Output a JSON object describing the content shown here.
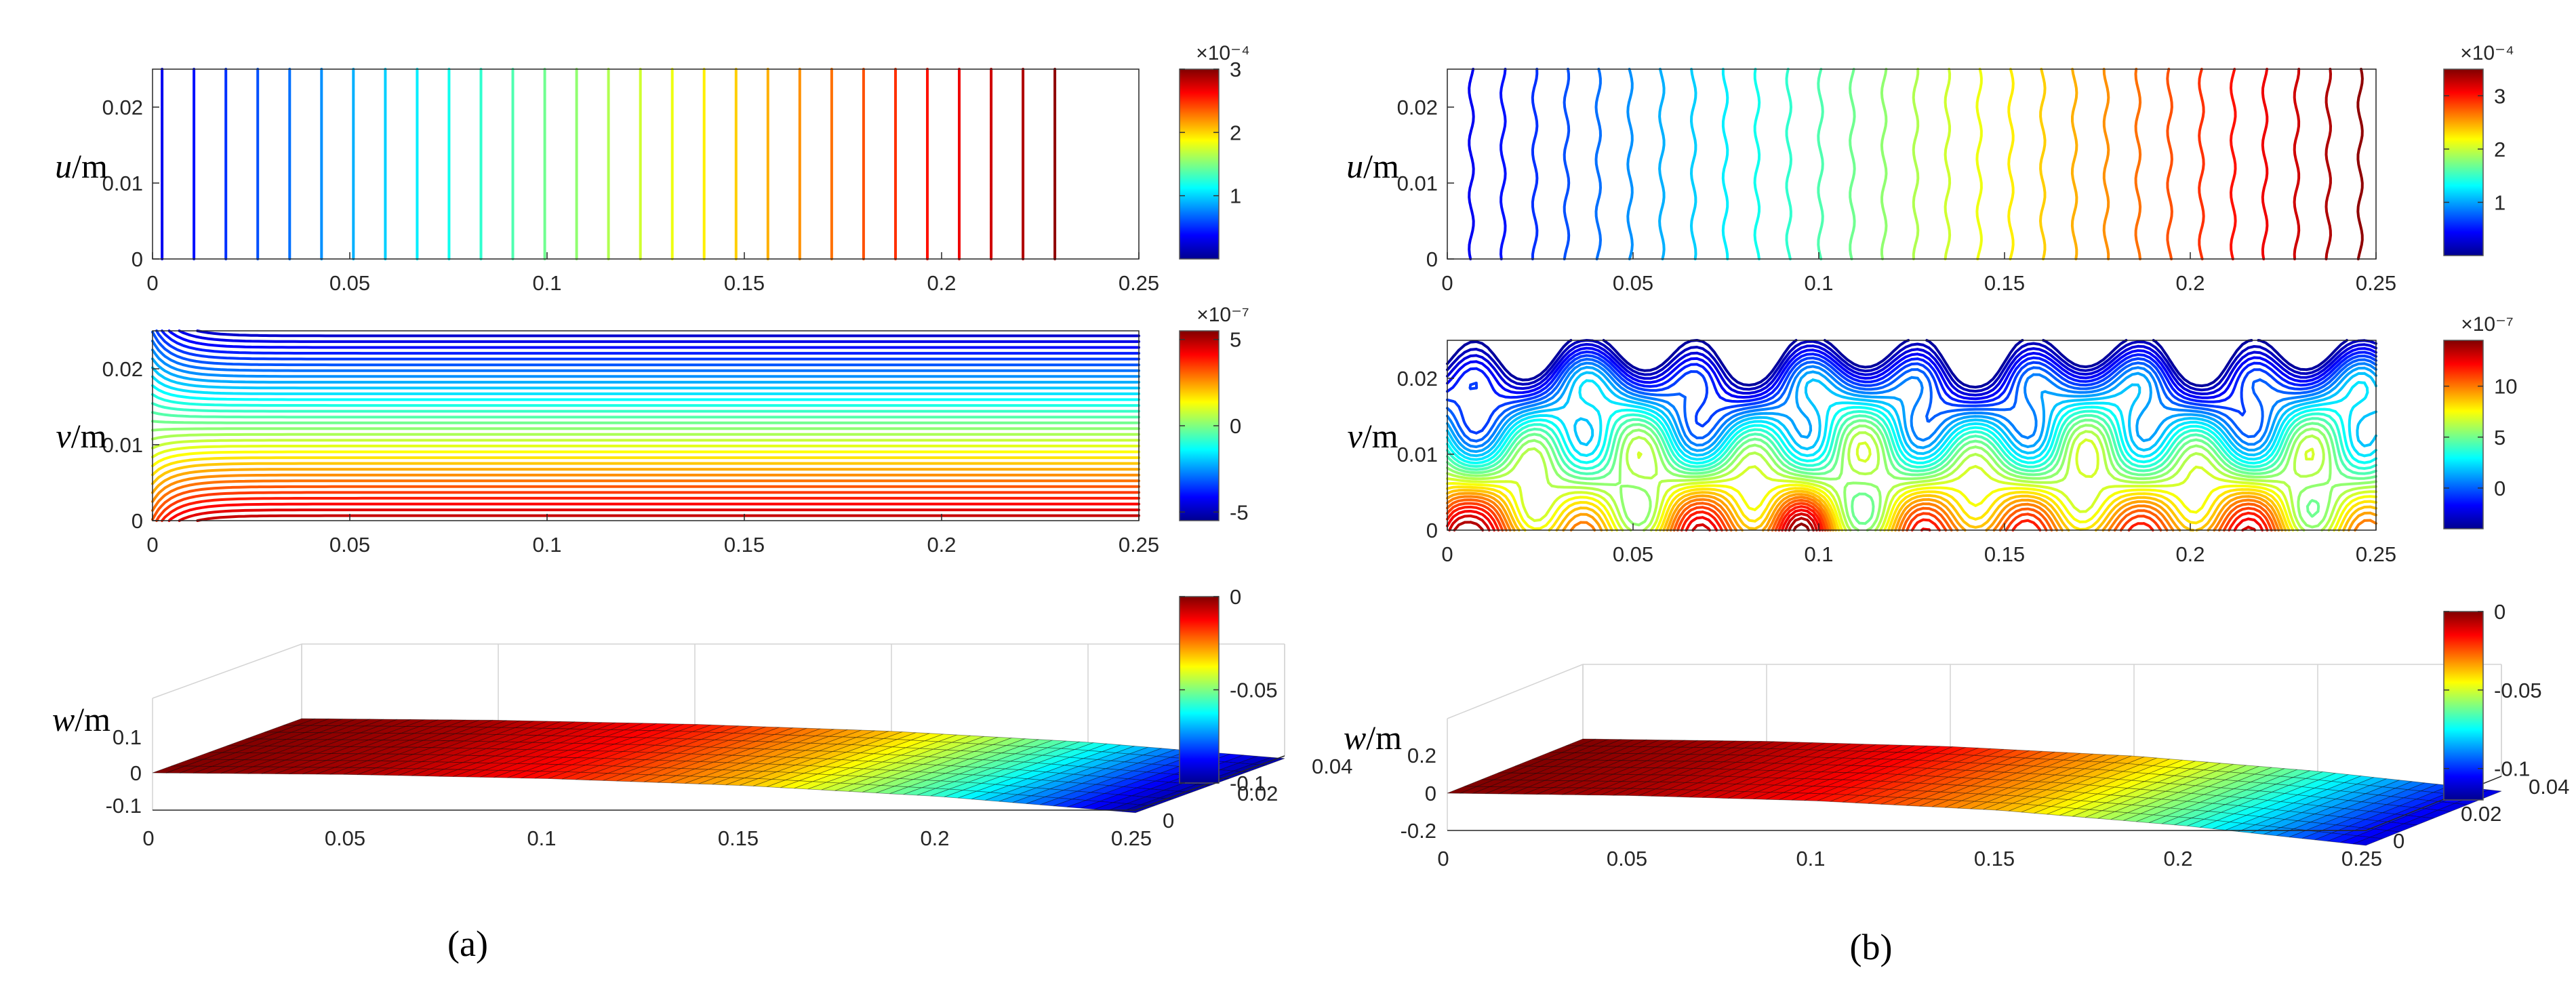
{
  "captions": [
    "(a)",
    "(b)"
  ],
  "colormap": [
    "#00008F",
    "#0000FF",
    "#0080FF",
    "#00FFFF",
    "#80FF80",
    "#FFFF00",
    "#FF8000",
    "#FF0000",
    "#800000"
  ],
  "chart_data": [
    {
      "type": "contour",
      "panel": "a",
      "field": "u",
      "ylabel_var": "u",
      "ylabel_unit": "/m",
      "xlim": [
        0,
        0.25
      ],
      "ylim": [
        0,
        0.025
      ],
      "xticks": [
        "0",
        "0.05",
        "0.1",
        "0.15",
        "0.2",
        "0.25"
      ],
      "yticks": [
        "0",
        "0.01",
        "0.02"
      ],
      "clim": [
        0.0,
        0.0003
      ],
      "colorbar_ticks": [
        "1",
        "2",
        "3"
      ],
      "colorbar_tick_values": [
        0.0001,
        0.0002,
        0.0003
      ],
      "colorbar_exponent": "×10⁻⁴",
      "contour_levels": 32,
      "contour_shape": "vertical-uniform"
    },
    {
      "type": "contour",
      "panel": "a",
      "field": "v",
      "ylabel_var": "v",
      "ylabel_unit": "/m",
      "xlim": [
        0,
        0.25
      ],
      "ylim": [
        0,
        0.025
      ],
      "xticks": [
        "0",
        "0.05",
        "0.1",
        "0.15",
        "0.2",
        "0.25"
      ],
      "yticks": [
        "0",
        "0.01",
        "0.02"
      ],
      "clim": [
        -5.5e-07,
        5.5e-07
      ],
      "colorbar_ticks": [
        "-5",
        "0",
        "5"
      ],
      "colorbar_tick_values": [
        -5e-07,
        0,
        5e-07
      ],
      "colorbar_exponent": "×10⁻⁷",
      "contour_levels": 36,
      "contour_shape": "horizontal-smooth"
    },
    {
      "type": "surface",
      "panel": "a",
      "field": "w",
      "ylabel_var": "w",
      "ylabel_unit": "/m",
      "xlim": [
        0,
        0.25
      ],
      "ylim": [
        0,
        0.04
      ],
      "zlim": [
        -0.1,
        0.1
      ],
      "xticks": [
        "0",
        "0.05",
        "0.1",
        "0.15",
        "0.2",
        "0.25"
      ],
      "yticks": [
        "0",
        "0.02",
        "0.04"
      ],
      "zticks": [
        "-0.1",
        "0",
        "0.1"
      ],
      "clim": [
        -0.1,
        0.0
      ],
      "colorbar_ticks": [
        "-0.1",
        "-0.05",
        "0"
      ],
      "colorbar_tick_values": [
        -0.1,
        -0.05,
        0.0
      ],
      "w_at_x": {
        "x": [
          0,
          0.05,
          0.1,
          0.15,
          0.2,
          0.25
        ],
        "w": [
          0.0,
          -0.004,
          -0.014,
          -0.031,
          -0.058,
          -0.098
        ]
      }
    },
    {
      "type": "contour",
      "panel": "b",
      "field": "u",
      "ylabel_var": "u",
      "ylabel_unit": "/m",
      "xlim": [
        0,
        0.25
      ],
      "ylim": [
        0,
        0.025
      ],
      "xticks": [
        "0",
        "0.05",
        "0.1",
        "0.15",
        "0.2",
        "0.25"
      ],
      "yticks": [
        "0",
        "0.01",
        "0.02"
      ],
      "clim": [
        0.0,
        0.00035
      ],
      "colorbar_ticks": [
        "1",
        "2",
        "3"
      ],
      "colorbar_tick_values": [
        0.0001,
        0.0002,
        0.0003
      ],
      "colorbar_exponent": "×10⁻⁴",
      "contour_levels": 32,
      "contour_shape": "vertical-wavy"
    },
    {
      "type": "contour",
      "panel": "b",
      "field": "v",
      "ylabel_var": "v",
      "ylabel_unit": "/m",
      "xlim": [
        0,
        0.25
      ],
      "ylim": [
        0,
        0.025
      ],
      "xticks": [
        "0",
        "0.05",
        "0.1",
        "0.15",
        "0.2",
        "0.25"
      ],
      "yticks": [
        "0",
        "0.01",
        "0.02"
      ],
      "clim": [
        -4e-07,
        1.45e-06
      ],
      "colorbar_ticks": [
        "0",
        "5",
        "10"
      ],
      "colorbar_tick_values": [
        0,
        5e-07,
        1e-06
      ],
      "colorbar_exponent": "×10⁻⁷",
      "contour_levels": 30,
      "contour_shape": "horizontal-irregular"
    },
    {
      "type": "surface",
      "panel": "b",
      "field": "w",
      "ylabel_var": "w",
      "ylabel_unit": "/m",
      "xlim": [
        0,
        0.25
      ],
      "ylim": [
        0,
        0.04
      ],
      "zlim": [
        -0.2,
        0.2
      ],
      "xticks": [
        "0",
        "0.05",
        "0.1",
        "0.15",
        "0.2",
        "0.25"
      ],
      "yticks": [
        "0",
        "0.02",
        "0.04"
      ],
      "zticks": [
        "-0.2",
        "0",
        "0.2"
      ],
      "clim": [
        -0.12,
        0.0
      ],
      "colorbar_ticks": [
        "-0.1",
        "-0.05",
        "0"
      ],
      "colorbar_tick_values": [
        -0.1,
        -0.05,
        0.0
      ],
      "w_at_x": {
        "x": [
          0,
          0.05,
          0.1,
          0.15,
          0.2,
          0.25
        ],
        "w": [
          0.0,
          -0.005,
          -0.016,
          -0.036,
          -0.068,
          -0.11
        ]
      }
    }
  ]
}
